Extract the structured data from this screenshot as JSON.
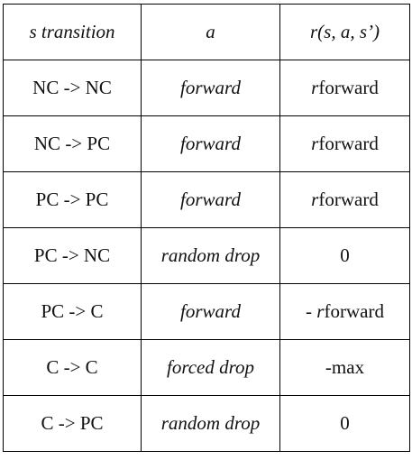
{
  "table": {
    "headers": [
      {
        "text": "s transition",
        "italic": true
      },
      {
        "text": "a",
        "italic": true
      },
      {
        "italic_part": "r",
        "plain_part": "(s, a, s’)",
        "plain_italic": true
      }
    ],
    "rows": [
      {
        "transition": "NC -> NC",
        "action": "forward",
        "reward_prefix": "",
        "reward_italic": "r",
        "reward_rest": "forward"
      },
      {
        "transition": "NC -> PC",
        "action": "forward",
        "reward_prefix": "",
        "reward_italic": "r",
        "reward_rest": "forward"
      },
      {
        "transition": "PC -> PC",
        "action": "forward",
        "reward_prefix": "",
        "reward_italic": "r",
        "reward_rest": "forward"
      },
      {
        "transition": "PC -> NC",
        "action": "random drop",
        "reward_prefix": "",
        "reward_italic": "",
        "reward_rest": "0"
      },
      {
        "transition": "PC -> C",
        "action": "forward",
        "reward_prefix": "- ",
        "reward_italic": "r",
        "reward_rest": "forward"
      },
      {
        "transition": "C -> C",
        "action": "forced drop",
        "reward_prefix": "",
        "reward_italic": "",
        "reward_rest": "-max"
      },
      {
        "transition": "C -> PC",
        "action": "random drop",
        "reward_prefix": "",
        "reward_italic": "",
        "reward_rest": "0"
      }
    ]
  }
}
